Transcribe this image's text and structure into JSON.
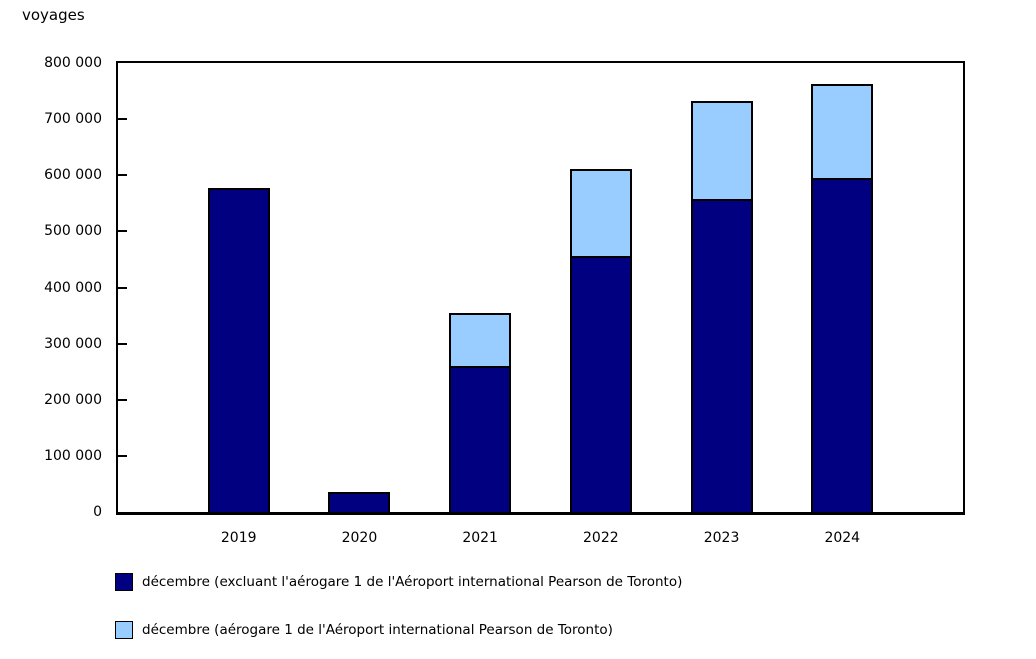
{
  "title": "voyages",
  "chart_data": {
    "type": "bar",
    "stacked": true,
    "title": "voyages",
    "xlabel": "",
    "ylabel": "voyages",
    "categories": [
      "2019",
      "2020",
      "2021",
      "2022",
      "2023",
      "2024"
    ],
    "series": [
      {
        "name": "décembre (excluant l'aérogare 1 de l'Aéroport international Pearson de Toronto)",
        "color": "#000080",
        "values": [
          578000,
          35000,
          260000,
          457000,
          558000,
          595000
        ]
      },
      {
        "name": "décembre (aérogare 1 de l'Aéroport international Pearson de Toronto)",
        "color": "#99CCFF",
        "values": [
          0,
          0,
          95000,
          154000,
          175000,
          168000
        ]
      }
    ],
    "ylim": [
      0,
      800000
    ],
    "ytick_step": 100000,
    "ytick_labels": [
      "0",
      "100 000",
      "200 000",
      "300 000",
      "400 000",
      "500 000",
      "600 000",
      "700 000",
      "800 000"
    ],
    "grid": false,
    "legend_position": "bottom-left",
    "bar_border_color": "#000000"
  }
}
